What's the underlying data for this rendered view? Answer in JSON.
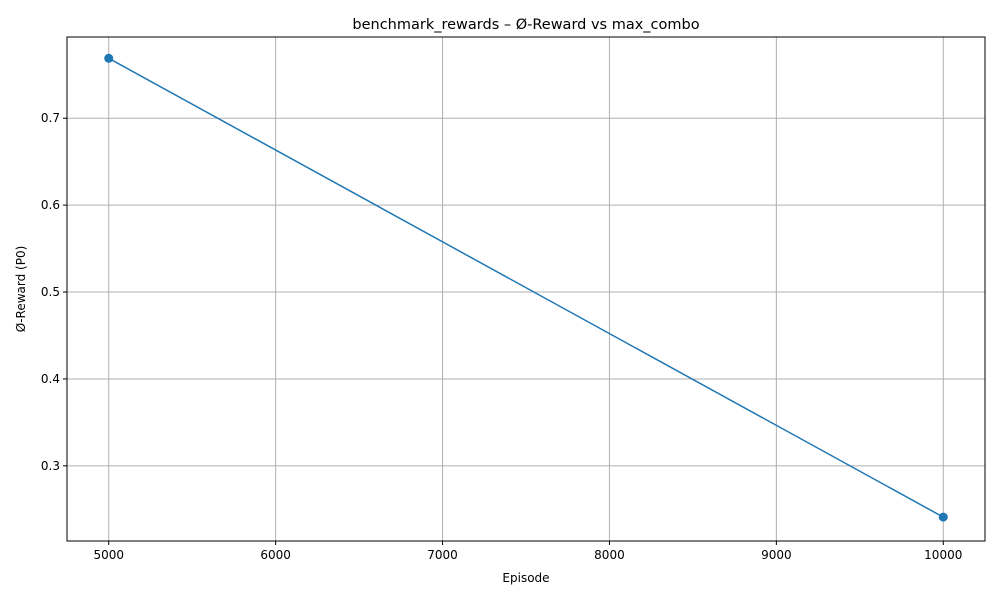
{
  "chart_data": {
    "type": "line",
    "title": "benchmark_rewards – Ø-Reward vs max_combo",
    "xlabel": "Episode",
    "ylabel": "Ø-Reward (P0)",
    "xlim": [
      4750,
      10250
    ],
    "ylim": [
      0.2135,
      0.7935
    ],
    "xticks": [
      5000,
      6000,
      7000,
      8000,
      9000,
      10000
    ],
    "xtick_labels": [
      "5000",
      "6000",
      "7000",
      "8000",
      "9000",
      "10000"
    ],
    "yticks": [
      0.3,
      0.4,
      0.5,
      0.6,
      0.7
    ],
    "ytick_labels": [
      "0.3",
      "0.4",
      "0.5",
      "0.6",
      "0.7"
    ],
    "grid": true,
    "series": [
      {
        "color": "#1f77b4",
        "marker": "circle",
        "x": [
          5000,
          10000
        ],
        "y": [
          0.769,
          0.241
        ]
      }
    ]
  }
}
